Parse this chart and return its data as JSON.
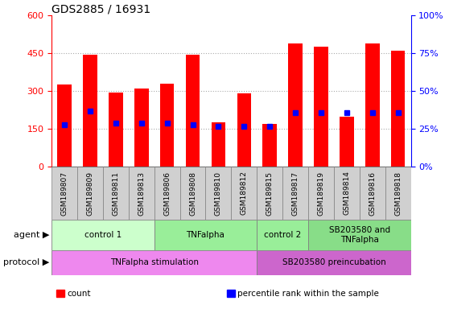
{
  "title": "GDS2885 / 16931",
  "samples": [
    "GSM189807",
    "GSM189809",
    "GSM189811",
    "GSM189813",
    "GSM189806",
    "GSM189808",
    "GSM189810",
    "GSM189812",
    "GSM189815",
    "GSM189817",
    "GSM189819",
    "GSM189814",
    "GSM189816",
    "GSM189818"
  ],
  "counts": [
    325,
    445,
    295,
    310,
    330,
    445,
    175,
    290,
    170,
    490,
    475,
    200,
    490,
    460
  ],
  "percentiles_pct": [
    28,
    37,
    29,
    29,
    29,
    28,
    27,
    27,
    27,
    36,
    36,
    36,
    36,
    36
  ],
  "left_ylim": [
    0,
    600
  ],
  "right_ylim": [
    0,
    100
  ],
  "left_yticks": [
    0,
    150,
    300,
    450,
    600
  ],
  "right_yticks": [
    0,
    25,
    50,
    75,
    100
  ],
  "bar_color": "#ff0000",
  "percentile_color": "#0000ff",
  "gridline_color": "#aaaaaa",
  "agent_groups": [
    {
      "label": "control 1",
      "start": 0,
      "end": 4,
      "color": "#ccffcc"
    },
    {
      "label": "TNFalpha",
      "start": 4,
      "end": 8,
      "color": "#99ee99"
    },
    {
      "label": "control 2",
      "start": 8,
      "end": 10,
      "color": "#99ee99"
    },
    {
      "label": "SB203580 and\nTNFalpha",
      "start": 10,
      "end": 14,
      "color": "#88dd88"
    }
  ],
  "protocol_groups": [
    {
      "label": "TNFalpha stimulation",
      "start": 0,
      "end": 8,
      "color": "#ee88ee"
    },
    {
      "label": "SB203580 preincubation",
      "start": 8,
      "end": 14,
      "color": "#cc66cc"
    }
  ],
  "sample_bg_color": "#d0d0d0",
  "legend_items": [
    {
      "label": "count",
      "color": "#ff0000"
    },
    {
      "label": "percentile rank within the sample",
      "color": "#0000ff"
    }
  ],
  "bar_width": 0.55,
  "title_fontsize": 10,
  "tick_fontsize": 8,
  "sample_fontsize": 6.5,
  "group_fontsize": 7.5,
  "legend_fontsize": 7.5,
  "label_fontsize": 8,
  "bg_color": "#ffffff",
  "agent_label": "agent",
  "protocol_label": "protocol"
}
